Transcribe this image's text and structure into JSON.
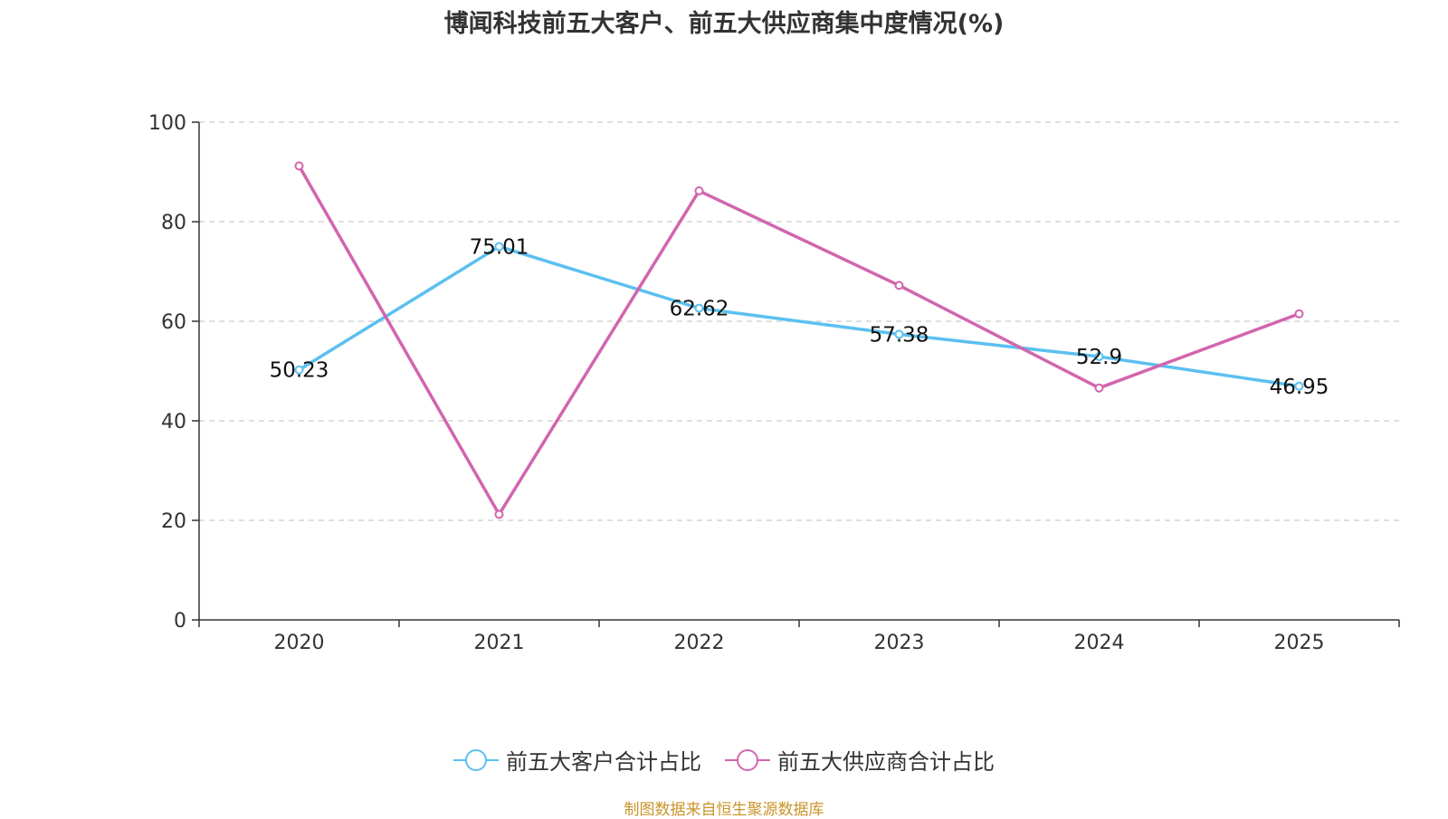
{
  "title": "博闻科技前五大客户、前五大供应商集中度情况(%)",
  "source": "制图数据来自恒生聚源数据库",
  "colors": {
    "series1": "#5BC0F0",
    "series2": "#D265AE",
    "source": "#C8952A",
    "axis": "#333333",
    "grid": "#CCCCCC"
  },
  "chart_data": {
    "type": "line",
    "title": "博闻科技前五大客户、前五大供应商集中度情况(%)",
    "x": [
      "2020",
      "2021",
      "2022",
      "2023",
      "2024",
      "2025"
    ],
    "ylim": [
      0,
      100
    ],
    "yticks": [
      0,
      20,
      40,
      60,
      80,
      100
    ],
    "grid": true,
    "legend_position": "bottom-center",
    "series": [
      {
        "name": "前五大客户合计占比",
        "values": [
          50.23,
          75.01,
          62.62,
          57.38,
          52.9,
          46.95
        ],
        "labels": [
          "50.23",
          "75.01",
          "62.62",
          "57.38",
          "52.9",
          "46.95"
        ],
        "color": "#5BC0F0"
      },
      {
        "name": "前五大供应商合计占比",
        "values": [
          91.2,
          21.2,
          86.2,
          67.2,
          46.6,
          61.5
        ],
        "color": "#D265AE"
      }
    ]
  }
}
